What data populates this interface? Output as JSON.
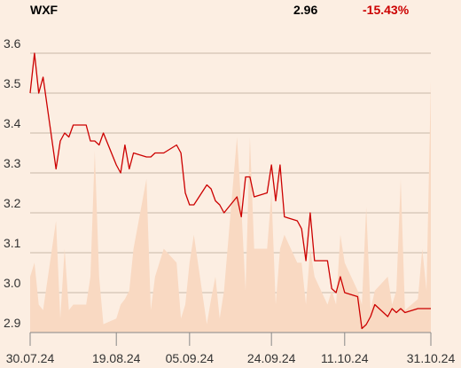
{
  "header": {
    "ticker": "WXF",
    "price": "2.96",
    "change": "-15.43%"
  },
  "colors": {
    "background": "#FCEEE2",
    "line": "#CC0000",
    "volume": "#F9D9C2",
    "change": "#CC0000",
    "grid": "#C8B8A8"
  },
  "chart_data": {
    "type": "line",
    "title": "",
    "xlabel": "",
    "ylabel": "",
    "ylim": [
      2.9,
      3.6
    ],
    "grid": true,
    "y_ticks": [
      "2.9",
      "3.0",
      "3.1",
      "3.2",
      "3.3",
      "3.4",
      "3.5",
      "3.6"
    ],
    "x_ticks": [
      "30.07.24",
      "19.08.24",
      "05.09.24",
      "24.09.24",
      "11.10.24",
      "31.10.24"
    ],
    "x_tick_dates": [
      "2024-07-30",
      "2024-08-19",
      "2024-09-05",
      "2024-09-24",
      "2024-10-11",
      "2024-10-31"
    ],
    "series": [
      {
        "x": [
          "2024-07-30",
          "2024-07-31",
          "2024-08-01",
          "2024-08-02",
          "2024-08-05",
          "2024-08-06",
          "2024-08-07",
          "2024-08-08",
          "2024-08-09",
          "2024-08-12",
          "2024-08-13",
          "2024-08-14",
          "2024-08-15",
          "2024-08-16",
          "2024-08-19",
          "2024-08-20",
          "2024-08-21",
          "2024-08-22",
          "2024-08-23",
          "2024-08-26",
          "2024-08-27",
          "2024-08-28",
          "2024-08-29",
          "2024-08-30",
          "2024-09-02",
          "2024-09-03",
          "2024-09-04",
          "2024-09-05",
          "2024-09-06",
          "2024-09-09",
          "2024-09-10",
          "2024-09-11",
          "2024-09-12",
          "2024-09-13",
          "2024-09-16",
          "2024-09-17",
          "2024-09-18",
          "2024-09-19",
          "2024-09-20",
          "2024-09-23",
          "2024-09-24",
          "2024-09-25",
          "2024-09-26",
          "2024-09-27",
          "2024-09-30",
          "2024-10-01",
          "2024-10-02",
          "2024-10-03",
          "2024-10-04",
          "2024-10-07",
          "2024-10-08",
          "2024-10-09",
          "2024-10-10",
          "2024-10-11",
          "2024-10-14",
          "2024-10-15",
          "2024-10-16",
          "2024-10-17",
          "2024-10-18",
          "2024-10-21",
          "2024-10-22",
          "2024-10-23",
          "2024-10-24",
          "2024-10-25",
          "2024-10-28",
          "2024-10-29",
          "2024-10-30",
          "2024-10-31"
        ],
        "y": [
          3.5,
          3.6,
          3.5,
          3.54,
          3.31,
          3.38,
          3.4,
          3.39,
          3.42,
          3.42,
          3.38,
          3.38,
          3.37,
          3.4,
          3.32,
          3.3,
          3.37,
          3.31,
          3.35,
          3.34,
          3.34,
          3.35,
          3.35,
          3.35,
          3.37,
          3.35,
          3.25,
          3.22,
          3.22,
          3.27,
          3.26,
          3.23,
          3.22,
          3.2,
          3.24,
          3.19,
          3.29,
          3.29,
          3.24,
          3.25,
          3.32,
          3.23,
          3.32,
          3.19,
          3.18,
          3.16,
          3.08,
          3.2,
          3.08,
          3.08,
          3.01,
          3.0,
          3.04,
          3.0,
          2.99,
          2.91,
          2.92,
          2.94,
          2.97,
          2.94,
          2.96,
          2.95,
          2.96,
          2.95,
          2.96,
          2.96,
          2.96,
          2.96
        ]
      }
    ],
    "volume": [
      0.2,
      0.25,
      0.1,
      0.08,
      0.4,
      0.05,
      0.3,
      0.08,
      0.1,
      0.1,
      0.2,
      0.65,
      0.2,
      0.03,
      0.05,
      0.1,
      0.12,
      0.15,
      0.3,
      0.55,
      0.08,
      0.2,
      0.25,
      0.3,
      0.25,
      0.05,
      0.1,
      0.25,
      0.35,
      0.03,
      0.12,
      0.2,
      0.05,
      0.15,
      0.7,
      0.45,
      0.15,
      0.7,
      0.3,
      0.3,
      0.5,
      0.1,
      0.3,
      0.35,
      0.25,
      0.25,
      0.1,
      0.3,
      0.2,
      0.1,
      0.15,
      0.1,
      0.35,
      0.25,
      0.15,
      0.1,
      0.45,
      0.08,
      0.15,
      0.2,
      0.1,
      0.15,
      0.55,
      0.08,
      0.12,
      0.3,
      0.15,
      0.9
    ]
  }
}
